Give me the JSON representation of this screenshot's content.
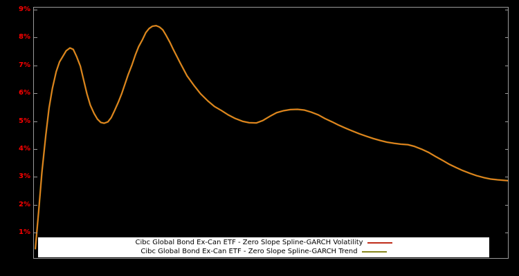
{
  "page": {
    "background": "#000000"
  },
  "axis": {
    "tick_color": "#ff0000",
    "border_color": "#9a9a9a",
    "y_ticks": [
      {
        "label": "9%",
        "value": 9
      },
      {
        "label": "8%",
        "value": 8
      },
      {
        "label": "7%",
        "value": 7
      },
      {
        "label": "6%",
        "value": 6
      },
      {
        "label": "5%",
        "value": 5
      },
      {
        "label": "4%",
        "value": 4
      },
      {
        "label": "3%",
        "value": 3
      },
      {
        "label": "2%",
        "value": 2
      },
      {
        "label": "1%",
        "value": 1
      }
    ]
  },
  "legend": {
    "items": [
      {
        "label": "Cibc Global Bond Ex-Can ETF - Zero Slope Spline-GARCH Volatility",
        "color": "#bf2b18"
      },
      {
        "label": "Cibc Global Bond Ex-Can ETF - Zero Slope Spline-GARCH Trend",
        "color": "#85851a"
      }
    ]
  },
  "chart_data": {
    "type": "line",
    "title": "",
    "xlabel": "",
    "ylabel": "",
    "ylim": [
      0,
      9
    ],
    "y_tick_labels": [
      "1%",
      "2%",
      "3%",
      "4%",
      "5%",
      "6%",
      "7%",
      "8%",
      "9%"
    ],
    "x_axis": "time (unlabeled)",
    "grid": false,
    "legend_position": "bottom-center",
    "series": [
      {
        "name": "Cibc Global Bond Ex-Can ETF - Zero Slope Spline-GARCH Volatility",
        "line_color": "#ef7d1e",
        "points": [
          [
            0.003,
            0.45
          ],
          [
            0.01,
            1.8
          ],
          [
            0.017,
            3.2
          ],
          [
            0.025,
            4.5
          ],
          [
            0.032,
            5.5
          ],
          [
            0.039,
            6.2
          ],
          [
            0.047,
            6.8
          ],
          [
            0.054,
            7.15
          ],
          [
            0.061,
            7.35
          ],
          [
            0.068,
            7.55
          ],
          [
            0.076,
            7.65
          ],
          [
            0.083,
            7.6
          ],
          [
            0.09,
            7.35
          ],
          [
            0.098,
            7.0
          ],
          [
            0.105,
            6.5
          ],
          [
            0.112,
            6.0
          ],
          [
            0.119,
            5.6
          ],
          [
            0.127,
            5.3
          ],
          [
            0.134,
            5.1
          ],
          [
            0.141,
            4.98
          ],
          [
            0.148,
            4.95
          ],
          [
            0.156,
            5.0
          ],
          [
            0.163,
            5.15
          ],
          [
            0.17,
            5.4
          ],
          [
            0.178,
            5.7
          ],
          [
            0.185,
            6.0
          ],
          [
            0.192,
            6.35
          ],
          [
            0.199,
            6.7
          ],
          [
            0.207,
            7.05
          ],
          [
            0.214,
            7.4
          ],
          [
            0.221,
            7.7
          ],
          [
            0.229,
            7.95
          ],
          [
            0.236,
            8.2
          ],
          [
            0.243,
            8.35
          ],
          [
            0.25,
            8.43
          ],
          [
            0.258,
            8.45
          ],
          [
            0.265,
            8.4
          ],
          [
            0.272,
            8.3
          ],
          [
            0.279,
            8.1
          ],
          [
            0.287,
            7.85
          ],
          [
            0.294,
            7.6
          ],
          [
            0.309,
            7.1
          ],
          [
            0.323,
            6.65
          ],
          [
            0.338,
            6.3
          ],
          [
            0.352,
            6.0
          ],
          [
            0.367,
            5.75
          ],
          [
            0.381,
            5.55
          ],
          [
            0.396,
            5.4
          ],
          [
            0.41,
            5.25
          ],
          [
            0.425,
            5.12
          ],
          [
            0.44,
            5.02
          ],
          [
            0.454,
            4.97
          ],
          [
            0.469,
            4.96
          ],
          [
            0.483,
            5.05
          ],
          [
            0.498,
            5.2
          ],
          [
            0.512,
            5.33
          ],
          [
            0.527,
            5.4
          ],
          [
            0.541,
            5.44
          ],
          [
            0.556,
            5.45
          ],
          [
            0.571,
            5.42
          ],
          [
            0.585,
            5.35
          ],
          [
            0.6,
            5.25
          ],
          [
            0.614,
            5.12
          ],
          [
            0.629,
            5.0
          ],
          [
            0.643,
            4.88
          ],
          [
            0.658,
            4.77
          ],
          [
            0.672,
            4.67
          ],
          [
            0.687,
            4.57
          ],
          [
            0.702,
            4.48
          ],
          [
            0.716,
            4.4
          ],
          [
            0.731,
            4.33
          ],
          [
            0.745,
            4.27
          ],
          [
            0.76,
            4.23
          ],
          [
            0.774,
            4.2
          ],
          [
            0.789,
            4.18
          ],
          [
            0.803,
            4.12
          ],
          [
            0.818,
            4.02
          ],
          [
            0.833,
            3.9
          ],
          [
            0.847,
            3.76
          ],
          [
            0.862,
            3.62
          ],
          [
            0.876,
            3.48
          ],
          [
            0.891,
            3.36
          ],
          [
            0.905,
            3.25
          ],
          [
            0.92,
            3.15
          ],
          [
            0.934,
            3.07
          ],
          [
            0.949,
            3.0
          ],
          [
            0.963,
            2.95
          ],
          [
            0.978,
            2.92
          ],
          [
            0.993,
            2.9
          ],
          [
            1.0,
            2.89
          ]
        ]
      },
      {
        "name": "Cibc Global Bond Ex-Can ETF - Zero Slope Spline-GARCH Trend",
        "line_color": "#85851a",
        "points": null,
        "note": "coincides with volatility series"
      }
    ]
  }
}
